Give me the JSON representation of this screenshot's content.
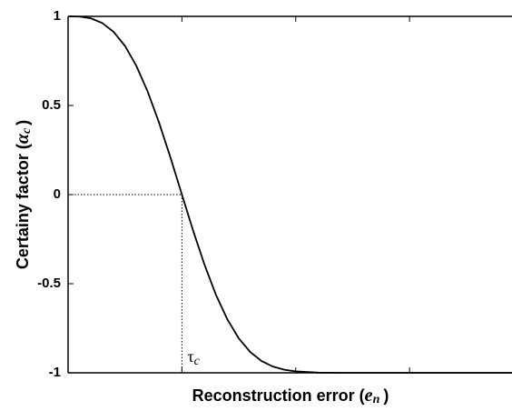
{
  "chart_data": {
    "type": "line",
    "ylabel": {
      "text": "Certainy factor (",
      "symbol": "α",
      "subscript": "c",
      "end": ")"
    },
    "xlabel": {
      "text": "Reconstruction error (",
      "symbol": "e",
      "subscript": "n",
      "end": ")"
    },
    "annotation": {
      "symbol": "τ",
      "subscript": "c",
      "x": 1,
      "y": 0
    },
    "x": [
      0,
      0.1,
      0.2,
      0.3,
      0.4,
      0.5,
      0.6,
      0.7,
      0.8,
      0.9,
      1.0,
      1.1,
      1.2,
      1.3,
      1.4,
      1.5,
      1.6,
      1.7,
      1.8,
      1.9,
      2.0,
      2.2,
      2.4,
      3.0,
      3.9
    ],
    "series": [
      {
        "color": "#000000",
        "values": [
          1,
          0.9986,
          0.989,
          0.963,
          0.913,
          0.834,
          0.722,
          0.577,
          0.402,
          0.207,
          0,
          -0.205,
          -0.396,
          -0.564,
          -0.701,
          -0.807,
          -0.883,
          -0.934,
          -0.965,
          -0.983,
          -0.992,
          -0.999,
          -1,
          -1,
          -1
        ]
      }
    ],
    "xlim": [
      0,
      3.9
    ],
    "xticks": [
      1,
      2,
      3
    ],
    "x_tick_labels": false,
    "ylim": [
      -1,
      1
    ],
    "yticks": [
      -1,
      -0.5,
      0,
      0.5,
      1
    ],
    "grid": false
  }
}
